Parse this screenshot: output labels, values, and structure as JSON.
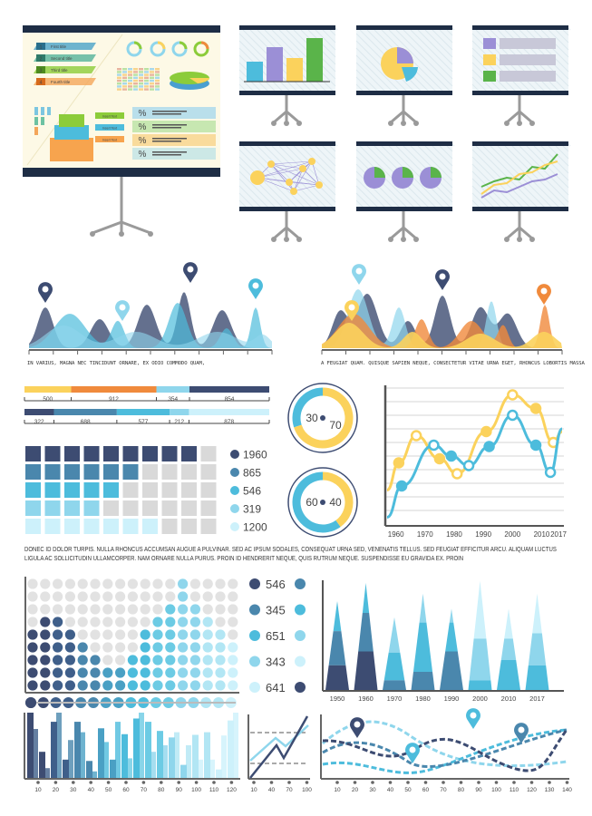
{
  "colors": {
    "navy": "#3d4c72",
    "steel": "#4a87ad",
    "cyan": "#4dbcdc",
    "light": "#8fd6ec",
    "pale": "#cdf1fb",
    "yellow": "#fbd25c",
    "orange": "#f08a3c",
    "board": "#1e2d45",
    "grey": "#d9d9d9"
  },
  "big_board": {
    "titles": [
      {
        "num": "1",
        "text": "First title"
      },
      {
        "num": "2",
        "text": "Second title"
      },
      {
        "num": "3",
        "text": "Third title"
      },
      {
        "num": "4",
        "text": "Fourth title"
      }
    ],
    "insert_labels": [
      "Insert Text",
      "Insert Text",
      "Insert Text"
    ],
    "percent_symbol": "%"
  },
  "small_boards": [
    "bar-chart",
    "pie-chart",
    "list",
    "network-diagram",
    "pie-charts",
    "line-chart"
  ],
  "captions": {
    "left": "IN VARIUS, MAGNA NEC TINCIDUNT ORNARE, EX ODIO COMMODO QUAM,",
    "right": "A FEUGIAT QUAM. QUISQUE SAPIEN NEQUE, CONSECTETUR VITAE URNA EGET, RHONCUS LOBORTIS MASSA",
    "paragraph": "DONEC ID DOLOR TURPIS. NULLA RHONCUS ACCUMSAN AUGUE A PULVINAR. SED AC IPSUM SODALES, CONSEQUAT URNA SED, VENENATIS TELLUS. SED FEUGIAT EFFICITUR ARCU. ALIQUAM LUCTUS LIGULA AC SOLLICITUDIN ULLAMCORPER. NAM ORNARE NULLA PURUS. PROIN ID HENDRERIT NEQUE, QUIS RUTRUM NEQUE. SUSPENDISSE EU GRAVIDA EX. PROIN"
  },
  "chart_data": [
    {
      "type": "bar",
      "id": "stacked-bar-1",
      "orientation": "horizontal",
      "values": [
        500,
        912,
        354,
        854
      ],
      "labels": [
        "500",
        "912",
        "354",
        "854"
      ],
      "colors": [
        "#fbd25c",
        "#f08a3c",
        "#8fd6ec",
        "#3d4c72"
      ]
    },
    {
      "type": "bar",
      "id": "stacked-bar-2",
      "orientation": "horizontal",
      "values": [
        322,
        688,
        577,
        212,
        878
      ],
      "labels": [
        "322",
        "688",
        "577",
        "212",
        "878"
      ],
      "colors": [
        "#3d4c72",
        "#4a87ad",
        "#4dbcdc",
        "#8fd6ec",
        "#cdf1fb"
      ]
    },
    {
      "type": "pie",
      "id": "donut-1",
      "values": [
        30,
        70
      ],
      "labels": [
        "30",
        "70"
      ],
      "colors": [
        "#4dbcdc",
        "#fbd25c"
      ]
    },
    {
      "type": "pie",
      "id": "donut-2",
      "values": [
        60,
        40
      ],
      "labels": [
        "60",
        "40"
      ],
      "colors": [
        "#4dbcdc",
        "#fbd25c"
      ]
    },
    {
      "type": "heatmap",
      "id": "waffle",
      "columns": 10,
      "filled": [
        9,
        6,
        5,
        4,
        7
      ],
      "legend": [
        "1960",
        "865",
        "546",
        "319",
        "1200"
      ],
      "colors": [
        "#3d4c72",
        "#4a87ad",
        "#4dbcdc",
        "#8fd6ec",
        "#cdf1fb"
      ]
    },
    {
      "type": "line",
      "id": "year-line-chart",
      "xticks": [
        "1960",
        "1970",
        "1980",
        "1990",
        "2000",
        "2010",
        "2017"
      ],
      "xlim": [
        1957,
        2017
      ],
      "ylim": [
        0,
        10
      ],
      "grid": true,
      "series": [
        {
          "color": "#fbd25c",
          "points": [
            [
              1957,
              2.5
            ],
            [
              1961,
              4.5
            ],
            [
              1967,
              6.5
            ],
            [
              1975,
              4.8
            ],
            [
              1981,
              3.7
            ],
            [
              1991,
              6.8
            ],
            [
              2000,
              9.5
            ],
            [
              2008,
              8.5
            ],
            [
              2014,
              6.0
            ],
            [
              2017,
              6.8
            ]
          ]
        },
        {
          "color": "#4dbcdc",
          "points": [
            [
              1957,
              0.5
            ],
            [
              1962,
              2.8
            ],
            [
              1973,
              5.8
            ],
            [
              1979,
              5.0
            ],
            [
              1985,
              4.3
            ],
            [
              1992,
              5.7
            ],
            [
              2000,
              8.0
            ],
            [
              2008,
              5.8
            ],
            [
              2013,
              3.8
            ],
            [
              2017,
              7.0
            ]
          ]
        }
      ]
    },
    {
      "type": "heatmap",
      "id": "dot-matrix",
      "rows": 9,
      "column_heights": [
        5,
        6,
        6,
        5,
        4,
        3,
        2,
        2,
        3,
        5,
        6,
        7,
        9,
        7,
        6,
        5,
        4
      ],
      "legend": [
        "546",
        "345",
        "651",
        "343",
        "641"
      ],
      "legend_colors": [
        [
          "#3d4c72",
          "#4a87ad"
        ],
        [
          "#4a87ad",
          "#4dbcdc"
        ],
        [
          "#4dbcdc",
          "#8fd6ec"
        ],
        [
          "#8fd6ec",
          "#cdf1fb"
        ],
        [
          "#cdf1fb",
          "#3d4c72"
        ]
      ]
    },
    {
      "type": "area",
      "id": "triangle-chart",
      "categories": [
        "1950",
        "1960",
        "1970",
        "1980",
        "1990",
        "2000",
        "2010",
        "2017"
      ],
      "layers": [
        [
          0.23,
          0.55,
          0.83
        ],
        [
          0.36,
          0.72,
          1.0
        ],
        [
          0.09,
          0.35,
          0.68
        ],
        [
          0.17,
          0.63,
          0.9
        ],
        [
          0.36,
          0.63,
          0.76
        ],
        [
          0.09,
          0.48,
          1.02
        ],
        [
          0.28,
          0.48,
          0.76
        ],
        [
          0.23,
          0.53,
          0.9
        ]
      ],
      "layer_colors": [
        [
          "#3d4c72",
          "#4a87ad",
          "#4dbcdc"
        ],
        [
          "#3d4c72",
          "#4a87ad",
          "#4dbcdc"
        ],
        [
          "#4a87ad",
          "#4dbcdc",
          "#8fd6ec"
        ],
        [
          "#4a87ad",
          "#4dbcdc",
          "#8fd6ec"
        ],
        [
          "#4a87ad",
          "#4dbcdc",
          "#8fd6ec"
        ],
        [
          "#4dbcdc",
          "#8fd6ec",
          "#cdf1fb"
        ],
        [
          "#4dbcdc",
          "#8fd6ec",
          "#cdf1fb"
        ],
        [
          "#4dbcdc",
          "#8fd6ec",
          "#cdf1fb"
        ]
      ]
    },
    {
      "type": "bar",
      "id": "bottom-bar-chart",
      "xticks": [
        "10",
        "20",
        "30",
        "40",
        "50",
        "60",
        "70",
        "80",
        "90",
        "100",
        "110",
        "120"
      ],
      "values": [
        [
          100,
          75
        ],
        [
          40,
          15
        ],
        [
          86,
          100
        ],
        [
          28,
          58
        ],
        [
          86,
          70
        ],
        [
          26,
          10
        ],
        [
          76,
          55
        ],
        [
          28,
          86
        ],
        [
          67,
          30
        ],
        [
          91,
          100
        ],
        [
          86,
          40
        ],
        [
          72,
          50
        ],
        [
          62,
          70
        ],
        [
          20,
          50
        ],
        [
          66,
          28
        ],
        [
          70,
          28
        ],
        [
          13,
          65
        ],
        [
          88,
          100
        ]
      ]
    },
    {
      "type": "line",
      "id": "mini-line-chart",
      "xticks": [
        "10",
        "40",
        "70",
        "100"
      ]
    },
    {
      "type": "line",
      "id": "dashed-line-chart",
      "xticks": [
        "10",
        "20",
        "30",
        "40",
        "50",
        "60",
        "70",
        "80",
        "90",
        "100",
        "110",
        "120",
        "130",
        "140"
      ]
    }
  ]
}
